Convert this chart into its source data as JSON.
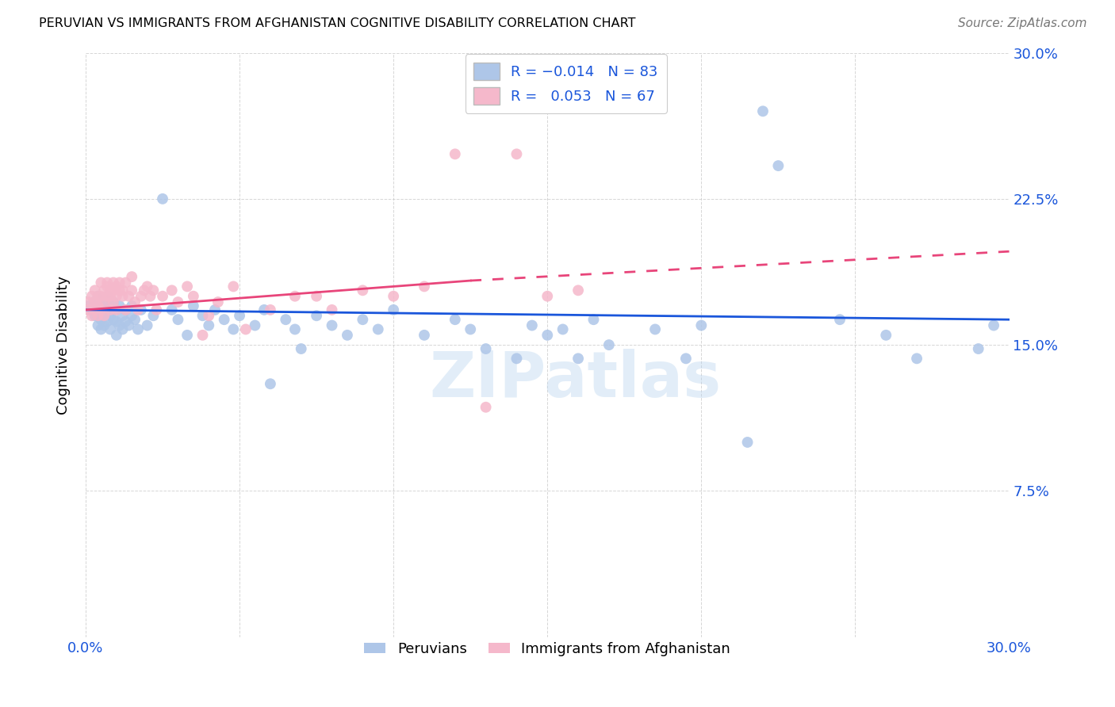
{
  "title": "PERUVIAN VS IMMIGRANTS FROM AFGHANISTAN COGNITIVE DISABILITY CORRELATION CHART",
  "source": "Source: ZipAtlas.com",
  "ylabel": "Cognitive Disability",
  "x_min": 0.0,
  "x_max": 0.3,
  "y_min": 0.0,
  "y_max": 0.3,
  "blue_R": -0.014,
  "blue_N": 83,
  "pink_R": 0.053,
  "pink_N": 67,
  "blue_color": "#aec6e8",
  "pink_color": "#f5b8cb",
  "blue_line_color": "#1a56db",
  "pink_line_color": "#e8457a",
  "legend_blue_label": "Peruvians",
  "legend_pink_label": "Immigrants from Afghanistan",
  "watermark": "ZIPatlas",
  "blue_x": [
    0.001,
    0.002,
    0.003,
    0.003,
    0.004,
    0.004,
    0.004,
    0.005,
    0.005,
    0.005,
    0.006,
    0.006,
    0.006,
    0.007,
    0.007,
    0.007,
    0.008,
    0.008,
    0.008,
    0.009,
    0.009,
    0.01,
    0.01,
    0.01,
    0.011,
    0.011,
    0.012,
    0.012,
    0.013,
    0.013,
    0.014,
    0.015,
    0.015,
    0.016,
    0.017,
    0.018,
    0.02,
    0.022,
    0.025,
    0.028,
    0.03,
    0.033,
    0.035,
    0.038,
    0.04,
    0.042,
    0.045,
    0.048,
    0.05,
    0.055,
    0.058,
    0.06,
    0.065,
    0.068,
    0.07,
    0.075,
    0.08,
    0.085,
    0.09,
    0.095,
    0.1,
    0.11,
    0.12,
    0.125,
    0.13,
    0.14,
    0.145,
    0.15,
    0.155,
    0.16,
    0.165,
    0.17,
    0.185,
    0.195,
    0.2,
    0.215,
    0.22,
    0.225,
    0.245,
    0.26,
    0.27,
    0.29,
    0.295
  ],
  "blue_y": [
    0.17,
    0.168,
    0.165,
    0.172,
    0.16,
    0.168,
    0.175,
    0.163,
    0.17,
    0.158,
    0.172,
    0.165,
    0.16,
    0.168,
    0.162,
    0.175,
    0.165,
    0.17,
    0.158,
    0.163,
    0.172,
    0.168,
    0.162,
    0.155,
    0.17,
    0.16,
    0.165,
    0.158,
    0.168,
    0.162,
    0.16,
    0.165,
    0.17,
    0.163,
    0.158,
    0.168,
    0.16,
    0.165,
    0.225,
    0.168,
    0.163,
    0.155,
    0.17,
    0.165,
    0.16,
    0.168,
    0.163,
    0.158,
    0.165,
    0.16,
    0.168,
    0.13,
    0.163,
    0.158,
    0.148,
    0.165,
    0.16,
    0.155,
    0.163,
    0.158,
    0.168,
    0.155,
    0.163,
    0.158,
    0.148,
    0.143,
    0.16,
    0.155,
    0.158,
    0.143,
    0.163,
    0.15,
    0.158,
    0.143,
    0.16,
    0.1,
    0.27,
    0.242,
    0.163,
    0.155,
    0.143,
    0.148,
    0.16
  ],
  "pink_x": [
    0.001,
    0.001,
    0.002,
    0.002,
    0.003,
    0.003,
    0.003,
    0.004,
    0.004,
    0.004,
    0.005,
    0.005,
    0.005,
    0.006,
    0.006,
    0.006,
    0.007,
    0.007,
    0.007,
    0.008,
    0.008,
    0.008,
    0.009,
    0.009,
    0.009,
    0.01,
    0.01,
    0.01,
    0.011,
    0.011,
    0.012,
    0.012,
    0.013,
    0.013,
    0.014,
    0.015,
    0.015,
    0.016,
    0.017,
    0.018,
    0.019,
    0.02,
    0.021,
    0.022,
    0.023,
    0.025,
    0.028,
    0.03,
    0.033,
    0.035,
    0.038,
    0.04,
    0.043,
    0.048,
    0.052,
    0.06,
    0.068,
    0.075,
    0.08,
    0.09,
    0.1,
    0.11,
    0.12,
    0.13,
    0.14,
    0.15,
    0.16
  ],
  "pink_y": [
    0.172,
    0.168,
    0.175,
    0.165,
    0.168,
    0.172,
    0.178,
    0.165,
    0.17,
    0.175,
    0.182,
    0.168,
    0.175,
    0.178,
    0.165,
    0.172,
    0.18,
    0.175,
    0.182,
    0.175,
    0.168,
    0.178,
    0.172,
    0.178,
    0.182,
    0.175,
    0.18,
    0.168,
    0.178,
    0.182,
    0.175,
    0.178,
    0.168,
    0.182,
    0.175,
    0.178,
    0.185,
    0.172,
    0.168,
    0.175,
    0.178,
    0.18,
    0.175,
    0.178,
    0.168,
    0.175,
    0.178,
    0.172,
    0.18,
    0.175,
    0.155,
    0.165,
    0.172,
    0.18,
    0.158,
    0.168,
    0.175,
    0.175,
    0.168,
    0.178,
    0.175,
    0.18,
    0.248,
    0.118,
    0.248,
    0.175,
    0.178
  ],
  "blue_trend": [
    0.168,
    0.163
  ],
  "pink_trend_solid": [
    0.0,
    0.125
  ],
  "pink_trend_dashed": [
    0.125,
    0.3
  ],
  "pink_trend_y_start": 0.168,
  "pink_trend_y_solid_end": 0.183,
  "pink_trend_y_dashed_end": 0.198
}
